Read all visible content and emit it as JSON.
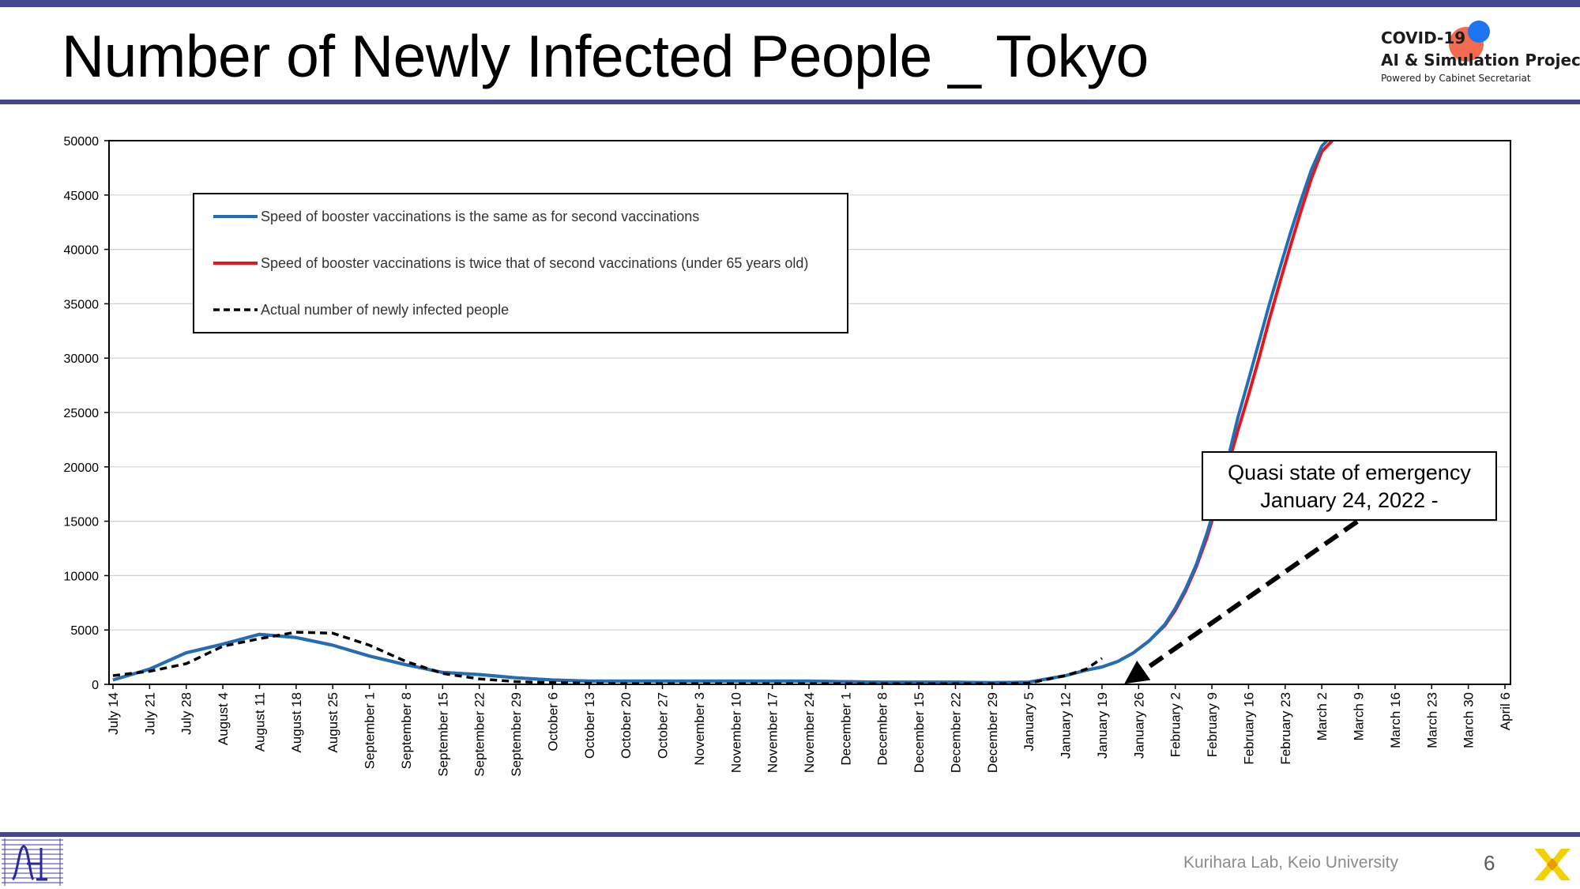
{
  "slide": {
    "title": "Number of Newly Infected People _ Tokyo",
    "page_number": "6",
    "credit": "Kurihara Lab, Keio University",
    "accent_color": "#46468c"
  },
  "logo": {
    "line1": "COVID-19",
    "line2": "AI & Simulation Project",
    "line3": "Powered by Cabinet Secretariat",
    "colors": [
      "#f36b4e",
      "#1c74f0"
    ]
  },
  "chart_data": {
    "type": "line",
    "title": "",
    "xlabel": "",
    "ylabel": "",
    "ylim": [
      0,
      50000
    ],
    "yticks": [
      0,
      5000,
      10000,
      15000,
      20000,
      25000,
      30000,
      35000,
      40000,
      45000,
      50000
    ],
    "x_tick_labels": [
      "July 14",
      "July 21",
      "July 28",
      "August 4",
      "August 11",
      "August 18",
      "August 25",
      "September 1",
      "September 8",
      "September 15",
      "September 22",
      "September 29",
      "October 6",
      "October 13",
      "October 20",
      "October 27",
      "November 3",
      "November 10",
      "November 17",
      "November 24",
      "December 1",
      "December 8",
      "December 15",
      "December 22",
      "December 29",
      "January 5",
      "January 12",
      "January 19",
      "January 26",
      "February 2",
      "February 9",
      "February 16",
      "February 23",
      "March 2",
      "March 9",
      "March 16",
      "March 23",
      "March 30",
      "April 6"
    ],
    "x_tick_step_days": 7,
    "grid": true,
    "legend_position": "top-left",
    "series": [
      {
        "name": "Speed of booster vaccinations is the same as for second vaccinations",
        "color": "#1f6fb8",
        "style": "solid",
        "points": [
          [
            0,
            400
          ],
          [
            7,
            1400
          ],
          [
            14,
            2900
          ],
          [
            21,
            3700
          ],
          [
            28,
            4600
          ],
          [
            35,
            4300
          ],
          [
            42,
            3600
          ],
          [
            49,
            2600
          ],
          [
            56,
            1800
          ],
          [
            63,
            1100
          ],
          [
            70,
            900
          ],
          [
            77,
            600
          ],
          [
            84,
            400
          ],
          [
            91,
            300
          ],
          [
            98,
            300
          ],
          [
            105,
            300
          ],
          [
            112,
            300
          ],
          [
            119,
            300
          ],
          [
            126,
            300
          ],
          [
            133,
            300
          ],
          [
            140,
            250
          ],
          [
            147,
            200
          ],
          [
            154,
            200
          ],
          [
            161,
            200
          ],
          [
            168,
            150
          ],
          [
            175,
            200
          ],
          [
            182,
            800
          ],
          [
            186,
            1300
          ],
          [
            189,
            1600
          ],
          [
            192,
            2100
          ],
          [
            195,
            2900
          ],
          [
            198,
            4000
          ],
          [
            201,
            5500
          ],
          [
            203,
            7000
          ],
          [
            205,
            8800
          ],
          [
            207,
            11000
          ],
          [
            209,
            13800
          ],
          [
            211,
            17000
          ],
          [
            213,
            20600
          ],
          [
            215,
            24600
          ],
          [
            217,
            28000
          ],
          [
            219,
            31500
          ],
          [
            221,
            35000
          ],
          [
            223,
            38300
          ],
          [
            225,
            41500
          ],
          [
            227,
            44500
          ],
          [
            229,
            47300
          ],
          [
            231,
            49500
          ],
          [
            232,
            50000
          ]
        ]
      },
      {
        "name": "Speed of booster vaccinations is twice that of second vaccinations (under 65 years old)",
        "color": "#e8141b",
        "style": "solid",
        "points": [
          [
            0,
            400
          ],
          [
            7,
            1400
          ],
          [
            14,
            2900
          ],
          [
            21,
            3700
          ],
          [
            28,
            4600
          ],
          [
            35,
            4300
          ],
          [
            42,
            3600
          ],
          [
            49,
            2600
          ],
          [
            56,
            1800
          ],
          [
            63,
            1100
          ],
          [
            70,
            900
          ],
          [
            77,
            600
          ],
          [
            84,
            400
          ],
          [
            91,
            300
          ],
          [
            98,
            300
          ],
          [
            105,
            300
          ],
          [
            112,
            300
          ],
          [
            119,
            300
          ],
          [
            126,
            300
          ],
          [
            133,
            300
          ],
          [
            140,
            250
          ],
          [
            147,
            200
          ],
          [
            154,
            200
          ],
          [
            161,
            200
          ],
          [
            168,
            150
          ],
          [
            175,
            200
          ],
          [
            182,
            800
          ],
          [
            186,
            1300
          ],
          [
            189,
            1600
          ],
          [
            192,
            2100
          ],
          [
            195,
            2900
          ],
          [
            198,
            4000
          ],
          [
            201,
            5400
          ],
          [
            203,
            6800
          ],
          [
            205,
            8600
          ],
          [
            207,
            10800
          ],
          [
            209,
            13400
          ],
          [
            211,
            16600
          ],
          [
            213,
            20000
          ],
          [
            215,
            23400
          ],
          [
            217,
            26600
          ],
          [
            219,
            30000
          ],
          [
            221,
            33600
          ],
          [
            223,
            37000
          ],
          [
            225,
            40300
          ],
          [
            227,
            43500
          ],
          [
            229,
            46500
          ],
          [
            231,
            49000
          ],
          [
            233,
            50000
          ]
        ]
      },
      {
        "name": "Actual number of newly infected people",
        "color": "#000000",
        "style": "dashed",
        "points": [
          [
            0,
            800
          ],
          [
            7,
            1200
          ],
          [
            14,
            1900
          ],
          [
            21,
            3500
          ],
          [
            28,
            4200
          ],
          [
            35,
            4800
          ],
          [
            42,
            4700
          ],
          [
            49,
            3600
          ],
          [
            56,
            2100
          ],
          [
            63,
            1000
          ],
          [
            70,
            500
          ],
          [
            77,
            250
          ],
          [
            84,
            150
          ],
          [
            91,
            100
          ],
          [
            98,
            50
          ],
          [
            105,
            50
          ],
          [
            112,
            50
          ],
          [
            119,
            50
          ],
          [
            126,
            50
          ],
          [
            133,
            50
          ],
          [
            140,
            50
          ],
          [
            147,
            50
          ],
          [
            154,
            50
          ],
          [
            161,
            50
          ],
          [
            168,
            50
          ],
          [
            175,
            100
          ],
          [
            182,
            800
          ],
          [
            186,
            1400
          ],
          [
            189,
            2400
          ]
        ]
      }
    ],
    "annotation": {
      "lines": [
        "Quasi state of emergency",
        "January 24, 2022 -"
      ],
      "arrow_target_day": 194
    }
  }
}
